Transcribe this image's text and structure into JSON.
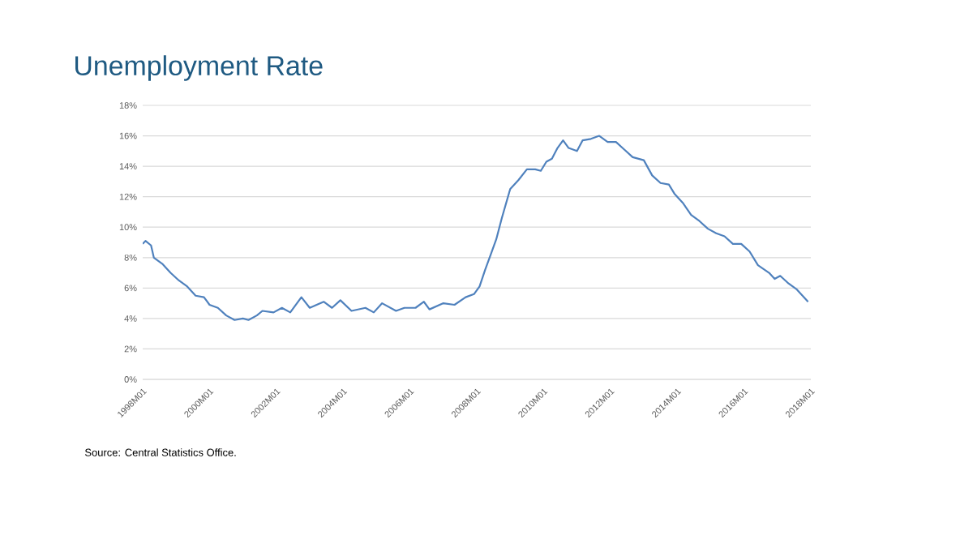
{
  "chart_data": {
    "type": "line",
    "title": "Unemployment Rate",
    "annotations": [
      "Source: Central Statistics Office."
    ],
    "x": [
      "1998-01",
      "1998-02",
      "1998-04",
      "1998-05",
      "1998-08",
      "1998-11",
      "1999-02",
      "1999-05",
      "1999-08",
      "1999-11",
      "2000-01",
      "2000-04",
      "2000-07",
      "2000-10",
      "2001-01",
      "2001-03",
      "2001-06",
      "2001-08",
      "2001-12",
      "2002-03",
      "2002-06",
      "2002-10",
      "2003-01",
      "2003-06",
      "2003-09",
      "2003-12",
      "2004-04",
      "2004-09",
      "2004-12",
      "2005-03",
      "2005-08",
      "2005-11",
      "2006-03",
      "2006-06",
      "2006-08",
      "2007-01",
      "2007-05",
      "2007-09",
      "2007-12",
      "2008-02",
      "2008-04",
      "2008-06",
      "2008-08",
      "2008-10",
      "2009-01",
      "2009-04",
      "2009-07",
      "2009-10",
      "2009-12",
      "2010-02",
      "2010-04",
      "2010-06",
      "2010-08",
      "2010-10",
      "2011-01",
      "2011-03",
      "2011-06",
      "2011-09",
      "2011-12",
      "2012-03",
      "2012-06",
      "2012-09",
      "2013-01",
      "2013-04",
      "2013-07",
      "2013-10",
      "2013-12",
      "2014-03",
      "2014-06",
      "2014-09",
      "2014-12",
      "2015-03",
      "2015-06",
      "2015-09",
      "2015-12",
      "2016-03",
      "2016-06",
      "2016-10",
      "2016-12",
      "2017-02",
      "2017-05",
      "2017-08",
      "2017-11",
      "2017-12"
    ],
    "series": [
      {
        "color": "#4f81bd",
        "values": [
          8.9,
          9.1,
          8.8,
          8.0,
          7.6,
          7.0,
          6.5,
          6.1,
          5.5,
          5.4,
          4.9,
          4.7,
          4.2,
          3.9,
          4.0,
          3.9,
          4.2,
          4.5,
          4.4,
          4.7,
          4.4,
          5.4,
          4.7,
          5.1,
          4.7,
          5.2,
          4.5,
          4.7,
          4.4,
          5.0,
          4.5,
          4.7,
          4.7,
          5.1,
          4.6,
          5.0,
          4.9,
          5.4,
          5.6,
          6.1,
          7.2,
          8.2,
          9.2,
          10.6,
          12.5,
          13.1,
          13.8,
          13.8,
          13.7,
          14.3,
          14.5,
          15.2,
          15.7,
          15.2,
          15.0,
          15.7,
          15.8,
          16.0,
          15.6,
          15.6,
          15.1,
          14.6,
          14.4,
          13.4,
          12.9,
          12.8,
          12.2,
          11.6,
          10.8,
          10.4,
          9.9,
          9.6,
          9.4,
          8.9,
          8.9,
          8.4,
          7.5,
          7.0,
          6.6,
          6.8,
          6.3,
          5.9,
          5.3,
          5.1
        ]
      }
    ],
    "xlim": [
      "1998-01",
      "2018-01"
    ],
    "xticks": [
      {
        "value": "1998-01",
        "label": "1998M01"
      },
      {
        "value": "2000-01",
        "label": "2000M01"
      },
      {
        "value": "2002-01",
        "label": "2002M01"
      },
      {
        "value": "2004-01",
        "label": "2004M01"
      },
      {
        "value": "2006-01",
        "label": "2006M01"
      },
      {
        "value": "2008-01",
        "label": "2008M01"
      },
      {
        "value": "2010-01",
        "label": "2010M01"
      },
      {
        "value": "2012-01",
        "label": "2012M01"
      },
      {
        "value": "2014-01",
        "label": "2014M01"
      },
      {
        "value": "2016-01",
        "label": "2016M01"
      },
      {
        "value": "2018-01",
        "label": "2018M01"
      }
    ],
    "ylim": [
      0,
      18
    ],
    "yticks": [
      {
        "value": 0,
        "label": "0%"
      },
      {
        "value": 2,
        "label": "2%"
      },
      {
        "value": 4,
        "label": "4%"
      },
      {
        "value": 6,
        "label": "6%"
      },
      {
        "value": 8,
        "label": "8%"
      },
      {
        "value": 10,
        "label": "10%"
      },
      {
        "value": 12,
        "label": "12%"
      },
      {
        "value": 14,
        "label": "14%"
      },
      {
        "value": 16,
        "label": "16%"
      },
      {
        "value": 18,
        "label": "18%"
      }
    ],
    "grid": "y",
    "legend": false,
    "marker": "none",
    "line_style": "solid"
  }
}
